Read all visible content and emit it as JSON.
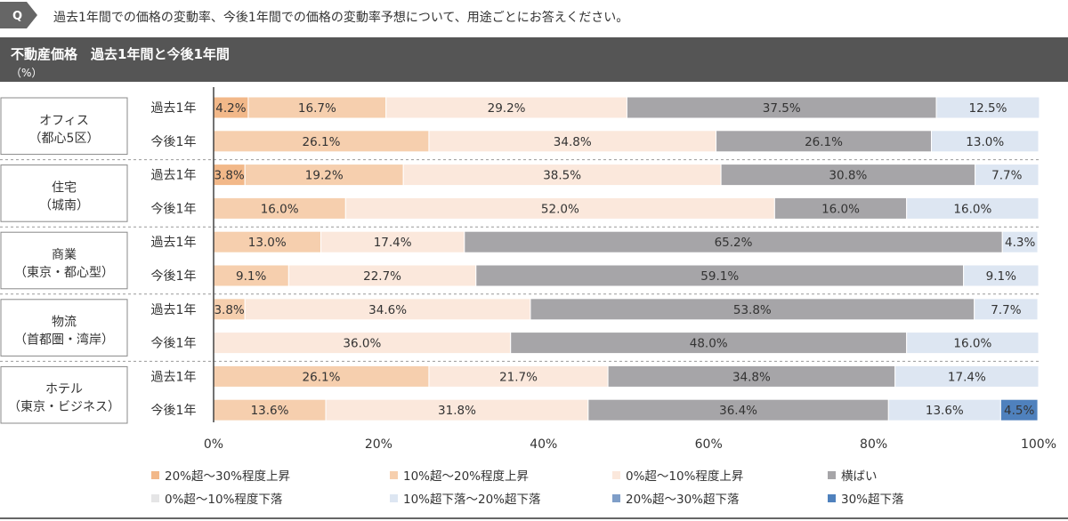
{
  "question": {
    "badge": "Q",
    "text": "過去1年間での価格の変動率、今後1年間での価格の変動率予想について、用途ごとにお答えください。"
  },
  "header": {
    "title": "不動産価格　過去1年間と今後1年間",
    "unit": "（%）"
  },
  "colors": {
    "header_bg": "#555555",
    "up_20_30": "#f2b889",
    "up_10_20": "#f6cfae",
    "up_0_10": "#fbe8dc",
    "flat": "#a6a5a8",
    "down_0_10": "#e5e5e6",
    "down_10_20": "#dde6f2",
    "down_20_30": "#7f9ec8",
    "down_30": "#4f81bd"
  },
  "chart_data": {
    "type": "bar",
    "orientation": "horizontal",
    "stacked": true,
    "percent_stacked": true,
    "groups": [
      {
        "label_lines": [
          "オフィス",
          "（都心5区）"
        ],
        "rows": [
          {
            "label": "過去1年",
            "values": [
              4.2,
              16.7,
              29.2,
              37.5,
              0,
              12.5,
              0,
              0
            ],
            "labels": [
              "4.2%",
              "16.7%",
              "29.2%",
              "37.5%",
              "",
              "12.5%",
              "",
              ""
            ]
          },
          {
            "label": "今後1年",
            "values": [
              0,
              26.1,
              34.8,
              26.1,
              0,
              13.0,
              0,
              0
            ],
            "labels": [
              "",
              "26.1%",
              "34.8%",
              "26.1%",
              "",
              "13.0%",
              "",
              ""
            ]
          }
        ]
      },
      {
        "label_lines": [
          "住宅",
          "（城南）"
        ],
        "rows": [
          {
            "label": "過去1年",
            "values": [
              3.8,
              19.2,
              38.5,
              30.8,
              0,
              7.7,
              0,
              0
            ],
            "labels": [
              "3.8%",
              "19.2%",
              "38.5%",
              "30.8%",
              "",
              "7.7%",
              "",
              ""
            ]
          },
          {
            "label": "今後1年",
            "values": [
              0,
              16.0,
              52.0,
              16.0,
              0,
              16.0,
              0,
              0
            ],
            "labels": [
              "",
              "16.0%",
              "52.0%",
              "16.0%",
              "",
              "16.0%",
              "",
              ""
            ]
          }
        ]
      },
      {
        "label_lines": [
          "商業",
          "（東京・都心型）"
        ],
        "rows": [
          {
            "label": "過去1年",
            "values": [
              0,
              13.0,
              17.4,
              65.2,
              0,
              4.3,
              0,
              0
            ],
            "labels": [
              "",
              "13.0%",
              "17.4%",
              "65.2%",
              "",
              "4.3%",
              "",
              ""
            ]
          },
          {
            "label": "今後1年",
            "values": [
              0,
              9.1,
              22.7,
              59.1,
              0,
              9.1,
              0,
              0
            ],
            "labels": [
              "",
              "9.1%",
              "22.7%",
              "59.1%",
              "",
              "9.1%",
              "",
              ""
            ]
          }
        ]
      },
      {
        "label_lines": [
          "物流",
          "（首都圏・湾岸）"
        ],
        "rows": [
          {
            "label": "過去1年",
            "values": [
              0,
              3.8,
              34.6,
              53.8,
              0,
              7.7,
              0,
              0
            ],
            "labels": [
              "",
              "3.8%",
              "34.6%",
              "53.8%",
              "",
              "7.7%",
              "",
              ""
            ]
          },
          {
            "label": "今後1年",
            "values": [
              0,
              0,
              36.0,
              48.0,
              0,
              16.0,
              0,
              0
            ],
            "labels": [
              "",
              "",
              "36.0%",
              "48.0%",
              "",
              "16.0%",
              "",
              ""
            ]
          }
        ]
      },
      {
        "label_lines": [
          "ホテル",
          "（東京・ビジネス）"
        ],
        "rows": [
          {
            "label": "過去1年",
            "values": [
              0,
              26.1,
              21.7,
              34.8,
              0,
              17.4,
              0,
              0
            ],
            "labels": [
              "",
              "26.1%",
              "21.7%",
              "34.8%",
              "",
              "17.4%",
              "",
              ""
            ]
          },
          {
            "label": "今後1年",
            "values": [
              0,
              13.6,
              31.8,
              36.4,
              0,
              13.6,
              0,
              4.5
            ],
            "labels": [
              "",
              "13.6%",
              "31.8%",
              "36.4%",
              "",
              "13.6%",
              "",
              "4.5%"
            ]
          }
        ]
      }
    ],
    "series": [
      {
        "name": "20%超～30%程度上昇",
        "color_key": "up_20_30"
      },
      {
        "name": "10%超～20%程度上昇",
        "color_key": "up_10_20"
      },
      {
        "name": "0%超～10%程度上昇",
        "color_key": "up_0_10"
      },
      {
        "name": "横ばい",
        "color_key": "flat"
      },
      {
        "name": "0%超～10%程度下落",
        "color_key": "down_0_10"
      },
      {
        "name": "10%超下落～20%超下落",
        "color_key": "down_10_20"
      },
      {
        "name": "20%超～30%超下落",
        "color_key": "down_20_30"
      },
      {
        "name": "30%超下落",
        "color_key": "down_30"
      }
    ],
    "xlim": [
      0,
      100
    ],
    "xticks": [
      "0%",
      "20%",
      "40%",
      "60%",
      "80%",
      "100%"
    ],
    "legend_position": "bottom",
    "grid": false
  }
}
